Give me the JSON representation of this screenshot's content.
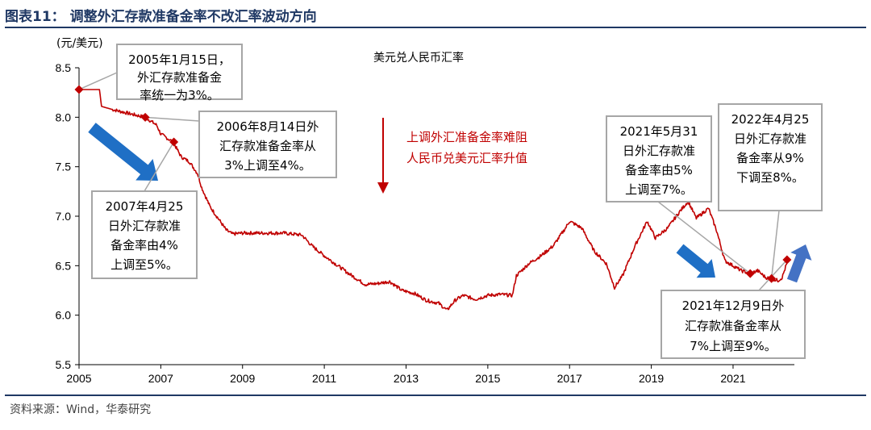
{
  "header": {
    "title": "图表11： 调整外汇存款准备金率不改汇率波动方向"
  },
  "footer": {
    "source": "资料来源：Wind，华泰研究"
  },
  "chart_data": {
    "type": "line",
    "unit_label": "(元/美元)",
    "series_label": "美元兑人民币汇率",
    "ylim": [
      5.5,
      8.5
    ],
    "yticks": [
      "5.5",
      "6.0",
      "6.5",
      "7.0",
      "7.5",
      "8.0",
      "8.5"
    ],
    "xlim": [
      2005,
      2022.5
    ],
    "xticks": [
      "2005",
      "2007",
      "2009",
      "2011",
      "2013",
      "2015",
      "2017",
      "2019",
      "2021"
    ],
    "grid": false,
    "colors": {
      "line": "#c00000",
      "marker": "#c00000",
      "down_arrow": "#1f6fc5",
      "up_arrow": "#4472c4",
      "note": "#c00000"
    },
    "series": [
      {
        "color": "#c00000",
        "x": [
          2005.0,
          2005.5,
          2005.55,
          2005.8,
          2006.0,
          2006.3,
          2006.62,
          2006.9,
          2007.0,
          2007.3,
          2007.5,
          2007.7,
          2007.9,
          2008.0,
          2008.2,
          2008.4,
          2008.6,
          2008.75,
          2009.0,
          2009.5,
          2010.0,
          2010.45,
          2010.7,
          2011.0,
          2011.3,
          2011.6,
          2012.0,
          2012.3,
          2012.6,
          2012.9,
          2013.2,
          2013.5,
          2013.8,
          2014.0,
          2014.2,
          2014.4,
          2014.7,
          2015.0,
          2015.3,
          2015.6,
          2015.7,
          2016.0,
          2016.3,
          2016.6,
          2016.9,
          2017.0,
          2017.3,
          2017.6,
          2017.9,
          2018.1,
          2018.3,
          2018.6,
          2018.9,
          2019.1,
          2019.4,
          2019.7,
          2019.9,
          2020.1,
          2020.4,
          2020.6,
          2020.8,
          2021.0,
          2021.2,
          2021.42,
          2021.6,
          2021.8,
          2021.94,
          2022.1,
          2022.2,
          2022.32
        ],
        "y": [
          8.28,
          8.28,
          8.11,
          8.08,
          8.06,
          8.03,
          8.0,
          7.92,
          7.83,
          7.75,
          7.6,
          7.55,
          7.43,
          7.29,
          7.1,
          6.98,
          6.86,
          6.82,
          6.83,
          6.83,
          6.83,
          6.81,
          6.7,
          6.6,
          6.51,
          6.42,
          6.31,
          6.32,
          6.34,
          6.25,
          6.22,
          6.15,
          6.12,
          6.05,
          6.15,
          6.2,
          6.16,
          6.2,
          6.21,
          6.2,
          6.4,
          6.52,
          6.6,
          6.7,
          6.88,
          6.95,
          6.88,
          6.65,
          6.52,
          6.28,
          6.4,
          6.7,
          6.95,
          6.78,
          6.88,
          7.05,
          7.15,
          6.98,
          7.08,
          6.85,
          6.55,
          6.5,
          6.45,
          6.42,
          6.45,
          6.38,
          6.37,
          6.35,
          6.38,
          6.53
        ]
      }
    ],
    "markers": [
      {
        "x": 2005.0,
        "y": 8.28
      },
      {
        "x": 2006.62,
        "y": 8.0
      },
      {
        "x": 2007.32,
        "y": 7.75
      },
      {
        "x": 2021.42,
        "y": 6.42
      },
      {
        "x": 2021.94,
        "y": 6.37
      },
      {
        "x": 2022.32,
        "y": 6.56
      }
    ],
    "note": {
      "lines": [
        "上调外汇准备金率难阻",
        "人民币兑美元汇率升值"
      ]
    },
    "annotations": [
      {
        "lines": [
          "2005年1月15日，",
          "外汇存款准备金",
          "率统一为3%。"
        ]
      },
      {
        "lines": [
          "2006年8月14日外",
          "汇存款准备金率从",
          "3%上调至4%。"
        ]
      },
      {
        "lines": [
          "2007年4月25",
          "日外汇存款准",
          "备金率由4%",
          "上调至5%。"
        ]
      },
      {
        "lines": [
          "2021年5月31",
          "日外汇存款准",
          "备金率由5%",
          "上调至7%。"
        ]
      },
      {
        "lines": [
          "2022年4月25",
          "日外汇存款准",
          "备金率从9%",
          "下调至8%。"
        ]
      },
      {
        "lines": [
          "2021年12月9日外",
          "汇存款准备金率从",
          "7%上调至9%。"
        ]
      }
    ]
  }
}
